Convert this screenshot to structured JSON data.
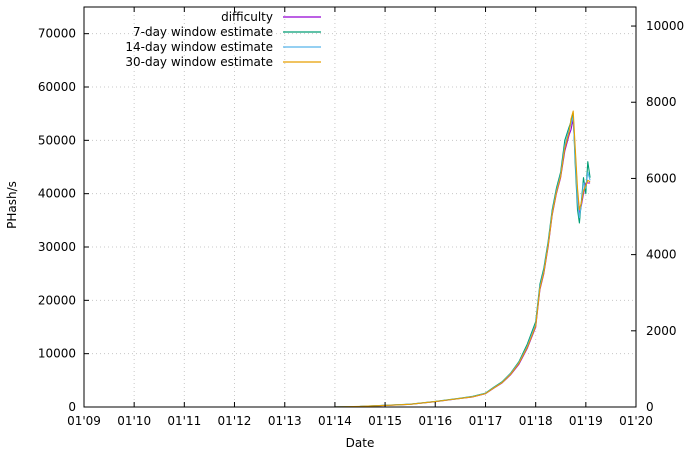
{
  "chart_data": {
    "type": "line",
    "xlabel": "Date",
    "ylabel": "PHash/s",
    "x_unit": "MM'YY",
    "xlim": [
      "2009-01-01",
      "2020-01-01"
    ],
    "x_ticks": [
      "01'09",
      "01'10",
      "01'11",
      "01'12",
      "01'13",
      "01'14",
      "01'15",
      "01'16",
      "01'17",
      "01'18",
      "01'19",
      "01'20"
    ],
    "ylim": [
      0,
      75000
    ],
    "y_ticks": [
      "0",
      "10000",
      "20000",
      "30000",
      "40000",
      "50000",
      "60000",
      "70000"
    ],
    "y2lim": [
      0,
      10500
    ],
    "y2_ticks": [
      "0",
      "2000",
      "4000",
      "6000",
      "8000",
      "10000"
    ],
    "grid": true,
    "legend_position": "top-center",
    "x": [
      "2014-01-01",
      "2014-07-01",
      "2015-01-01",
      "2015-07-01",
      "2016-01-01",
      "2016-04-01",
      "2016-07-01",
      "2016-10-01",
      "2017-01-01",
      "2017-03-01",
      "2017-05-01",
      "2017-07-01",
      "2017-09-01",
      "2017-11-01",
      "2018-01-01",
      "2018-02-01",
      "2018-03-01",
      "2018-04-01",
      "2018-05-01",
      "2018-06-01",
      "2018-07-01",
      "2018-08-01",
      "2018-09-01",
      "2018-09-15",
      "2018-10-01",
      "2018-10-15",
      "2018-11-01",
      "2018-11-15",
      "2018-12-01",
      "2018-12-15",
      "2019-01-01",
      "2019-01-15",
      "2019-02-01"
    ],
    "series": [
      {
        "name": "difficulty",
        "color": "#9400d3",
        "values": [
          10,
          100,
          300,
          500,
          1000,
          1300,
          1600,
          1900,
          2500,
          3500,
          4500,
          6000,
          8000,
          11000,
          15000,
          22000,
          25000,
          30000,
          36000,
          40000,
          43000,
          48000,
          51000,
          52000,
          54000,
          48000,
          40000,
          36000,
          38000,
          40000,
          42000,
          42000,
          42000
        ]
      },
      {
        "name": "7-day window estimate",
        "color": "#009e73",
        "values": [
          15,
          120,
          320,
          520,
          1050,
          1350,
          1650,
          2000,
          2600,
          3700,
          4700,
          6300,
          8500,
          11800,
          16000,
          23000,
          26000,
          31000,
          37000,
          41000,
          44000,
          50000,
          52500,
          53500,
          55000,
          46000,
          37000,
          34500,
          39000,
          43000,
          40000,
          46000,
          43000
        ]
      },
      {
        "name": "14-day window estimate",
        "color": "#56b4e9",
        "values": [
          12,
          110,
          310,
          510,
          1020,
          1320,
          1620,
          1950,
          2550,
          3600,
          4600,
          6200,
          8300,
          11400,
          15500,
          22500,
          25500,
          30500,
          36500,
          40500,
          43500,
          49000,
          52000,
          53000,
          54500,
          47000,
          38500,
          35500,
          38500,
          42000,
          41000,
          44000,
          42500
        ]
      },
      {
        "name": "30-day window estimate",
        "color": "#e69f00",
        "values": [
          10,
          105,
          305,
          505,
          1010,
          1310,
          1610,
          1920,
          2520,
          3550,
          4550,
          6100,
          8200,
          11200,
          15200,
          22200,
          25200,
          30200,
          36200,
          40200,
          43200,
          48500,
          51500,
          54000,
          55500,
          49000,
          41000,
          37000,
          38500,
          40500,
          41500,
          42500,
          42200
        ]
      }
    ]
  }
}
